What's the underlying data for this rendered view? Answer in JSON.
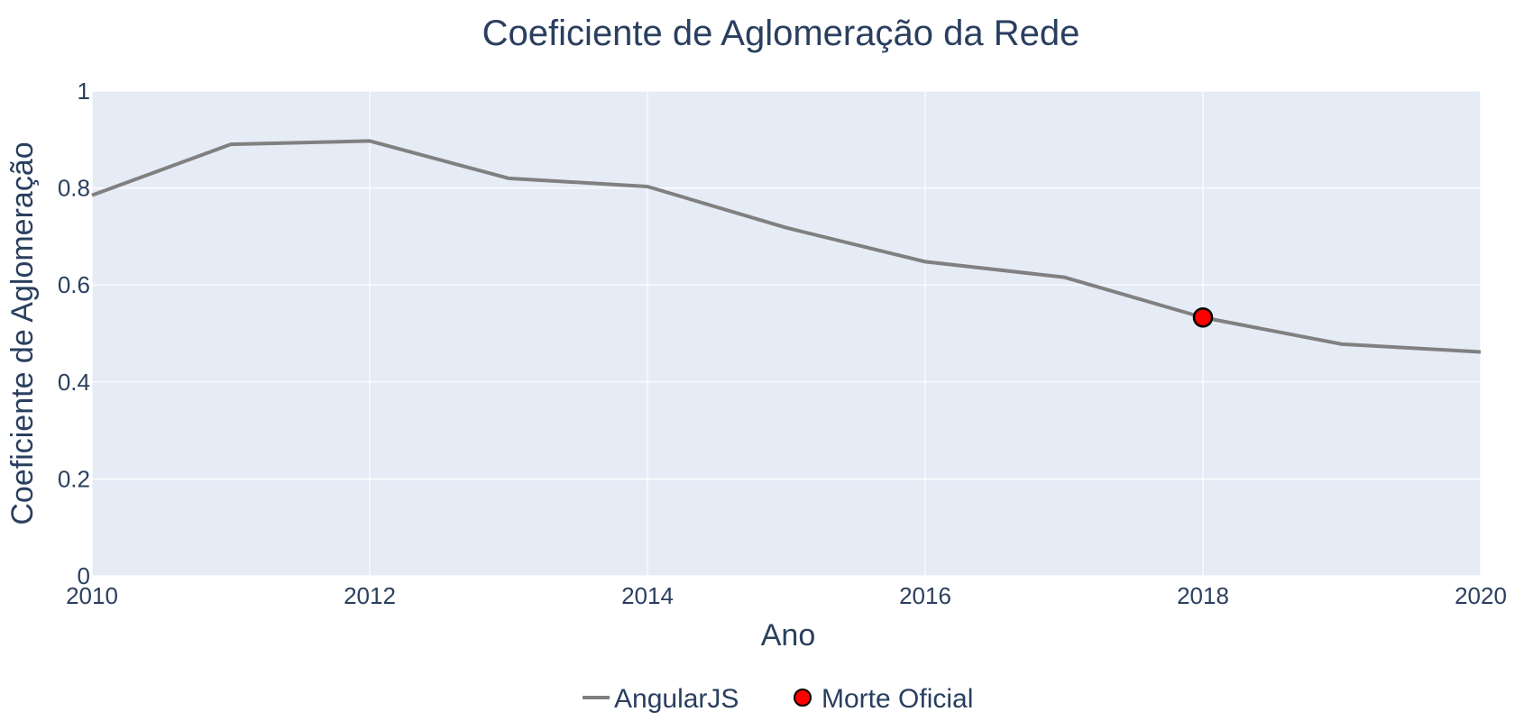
{
  "chart_data": {
    "type": "line",
    "title": "Coeficiente de Aglomeração da Rede",
    "xlabel": "Ano",
    "ylabel": "Coeficiente de Aglomeração",
    "xlim": [
      2010,
      2020
    ],
    "ylim": [
      0,
      1
    ],
    "x_ticks": [
      "2010",
      "2012",
      "2014",
      "2016",
      "2018",
      "2020"
    ],
    "y_ticks": [
      "0",
      "0.2",
      "0.4",
      "0.6",
      "0.8",
      "1"
    ],
    "grid": true,
    "legend_position": "bottom-center",
    "series": [
      {
        "name": "AngularJS",
        "type": "line",
        "color": "#808080",
        "x": [
          2010,
          2011,
          2012,
          2013,
          2014,
          2015,
          2016,
          2017,
          2018,
          2019,
          2020
        ],
        "y": [
          0.785,
          0.89,
          0.897,
          0.82,
          0.803,
          0.718,
          0.648,
          0.616,
          0.533,
          0.478,
          0.462
        ]
      },
      {
        "name": "Morte Oficial",
        "type": "scatter",
        "color": "#ff0000",
        "x": [
          2018
        ],
        "y": [
          0.533
        ]
      }
    ]
  }
}
